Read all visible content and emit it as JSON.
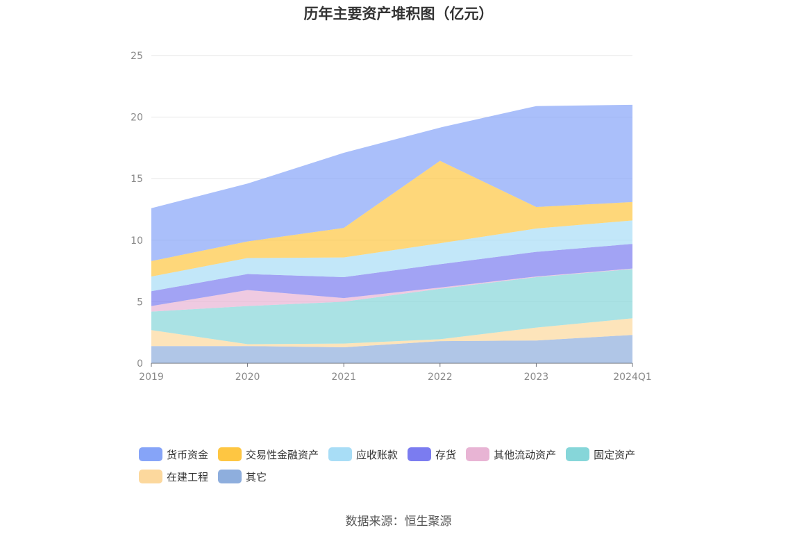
{
  "chart_data": {
    "type": "area",
    "stacked": true,
    "title": "历年主要资产堆积图（亿元）",
    "source": "数据来源：恒生聚源",
    "categories": [
      "2019",
      "2020",
      "2021",
      "2022",
      "2023",
      "2024Q1"
    ],
    "y_ticks": [
      "0",
      "5",
      "10",
      "15",
      "20",
      "25"
    ],
    "ylim": [
      0,
      25
    ],
    "grid": true,
    "legend_position": "bottom",
    "series": [
      {
        "name": "其它",
        "color": "#8eaedd",
        "values": [
          1.4,
          1.4,
          1.3,
          1.8,
          1.85,
          2.3
        ]
      },
      {
        "name": "在建工程",
        "color": "#fcd89d",
        "values": [
          1.3,
          0.15,
          0.3,
          0.15,
          1.05,
          1.35
        ]
      },
      {
        "name": "固定资产",
        "color": "#86d6d9",
        "values": [
          1.5,
          3.1,
          3.4,
          4.1,
          4.1,
          4.0
        ]
      },
      {
        "name": "其他流动资产",
        "color": "#e8b4d4",
        "values": [
          0.45,
          1.3,
          0.3,
          0.1,
          0.05,
          0.05
        ]
      },
      {
        "name": "存货",
        "color": "#7b7cf0",
        "values": [
          1.2,
          1.3,
          1.7,
          1.9,
          2.0,
          2.0
        ]
      },
      {
        "name": "应收账款",
        "color": "#a8ddf6",
        "values": [
          1.2,
          1.3,
          1.6,
          1.7,
          1.9,
          1.9
        ]
      },
      {
        "name": "交易性金融资产",
        "color": "#fec642",
        "values": [
          1.25,
          1.35,
          2.4,
          6.7,
          1.75,
          1.5
        ]
      },
      {
        "name": "货币资金",
        "color": "#86a4f8",
        "values": [
          4.3,
          4.7,
          6.1,
          2.7,
          8.2,
          7.9
        ]
      }
    ],
    "legend": {
      "rows": [
        [
          "货币资金",
          "交易性金融资产",
          "应收账款",
          "存货",
          "其他流动资产",
          "固定资产"
        ],
        [
          "在建工程",
          "其它"
        ]
      ]
    }
  }
}
